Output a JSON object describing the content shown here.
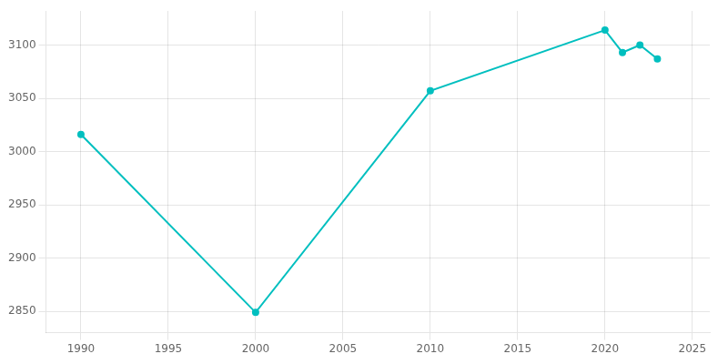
{
  "chart_data": {
    "type": "line",
    "x": [
      1990,
      2000,
      2010,
      2020,
      2021,
      2022,
      2023
    ],
    "values": [
      3016,
      2849,
      3057,
      3114,
      3093,
      3100,
      3087
    ],
    "color": "#00BFBF",
    "marker": "o",
    "xlim": [
      1988,
      2026
    ],
    "ylim": [
      2830,
      3132
    ],
    "xticks": [
      1990,
      1995,
      2000,
      2005,
      2010,
      2015,
      2020,
      2025
    ],
    "yticks": [
      2850,
      2900,
      2950,
      3000,
      3050,
      3100
    ],
    "grid": true
  }
}
